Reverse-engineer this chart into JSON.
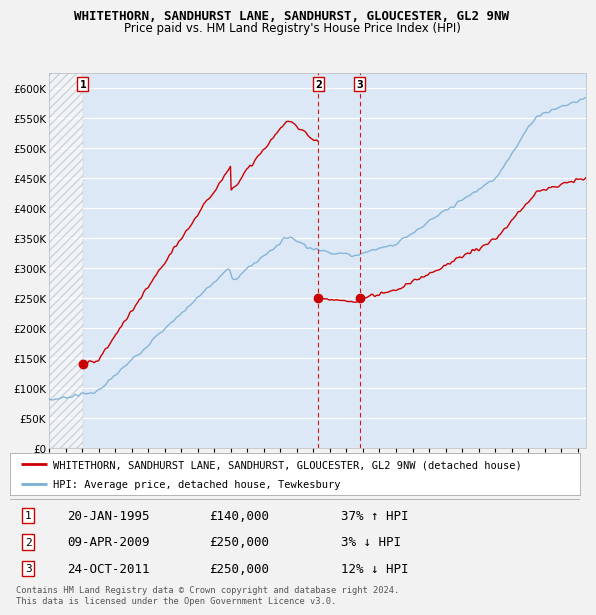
{
  "title": "WHITETHORN, SANDHURST LANE, SANDHURST, GLOUCESTER, GL2 9NW",
  "subtitle": "Price paid vs. HM Land Registry's House Price Index (HPI)",
  "yticks": [
    0,
    50000,
    100000,
    150000,
    200000,
    250000,
    300000,
    350000,
    400000,
    450000,
    500000,
    550000,
    600000
  ],
  "xlim_start": 1993.0,
  "xlim_end": 2025.5,
  "ylim_min": 0,
  "ylim_max": 625000,
  "sale_color": "#cc0000",
  "hpi_color": "#7ab0d4",
  "background_chart": "#dce8f5",
  "grid_color": "#ffffff",
  "legend_label_sale": "WHITETHORN, SANDHURST LANE, SANDHURST, GLOUCESTER, GL2 9NW (detached house)",
  "legend_label_hpi": "HPI: Average price, detached house, Tewkesbury",
  "transactions": [
    {
      "num": 1,
      "date": "20-JAN-1995",
      "price": 140000,
      "pct": "37%",
      "dir": "↑",
      "year": 1995.05
    },
    {
      "num": 2,
      "date": "09-APR-2009",
      "price": 250000,
      "pct": "3%",
      "dir": "↓",
      "year": 2009.3
    },
    {
      "num": 3,
      "date": "24-OCT-2011",
      "price": 250000,
      "pct": "12%",
      "dir": "↓",
      "year": 2011.8
    }
  ],
  "footnote": "Contains HM Land Registry data © Crown copyright and database right 2024.\nThis data is licensed under the Open Government Licence v3.0.",
  "title_fontsize": 9,
  "subtitle_fontsize": 8.5,
  "tick_fontsize": 7.5,
  "table_fontsize": 9
}
